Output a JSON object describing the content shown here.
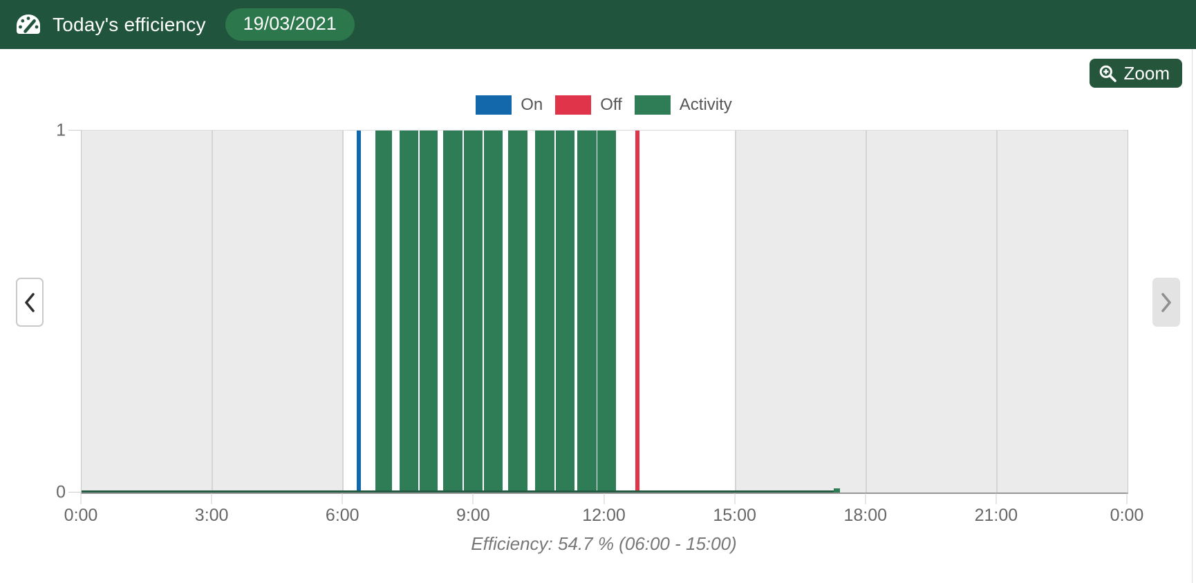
{
  "page": {
    "background": "#ffffff"
  },
  "header": {
    "title": "Today's efficiency",
    "date_badge": "19/03/2021",
    "background": "#21543d",
    "badge_background": "#2d774c"
  },
  "toolbar": {
    "zoom_label": "Zoom",
    "button_background": "#25563c"
  },
  "legend": {
    "position": "top-center",
    "items": [
      {
        "label": "On",
        "color": "#1368ab"
      },
      {
        "label": "Off",
        "color": "#df3449"
      },
      {
        "label": "Activity",
        "color": "#2e7d57"
      }
    ]
  },
  "chart_data": {
    "type": "bar",
    "title": "",
    "x_axis": {
      "unit": "hour-of-day",
      "range_hours": [
        0,
        24
      ],
      "tick_hours": [
        0,
        3,
        6,
        9,
        12,
        15,
        18,
        21,
        24
      ],
      "tick_labels": [
        "0:00",
        "3:00",
        "6:00",
        "9:00",
        "12:00",
        "15:00",
        "18:00",
        "21:00",
        "0:00"
      ],
      "grid": true
    },
    "y_axis": {
      "range": [
        0,
        1
      ],
      "ticks": {
        "min": "0",
        "max": "1"
      }
    },
    "off_hours_band_color": "#ebebeb",
    "off_hours_bands_hours": [
      [
        0,
        6
      ],
      [
        15,
        24
      ]
    ],
    "series": [
      {
        "name": "On",
        "style": "vertical-line",
        "color": "#1368ab",
        "hour": 6.36
      },
      {
        "name": "Off",
        "style": "vertical-line",
        "color": "#df3449",
        "hour": 12.75
      },
      {
        "name": "Activity",
        "style": "bars",
        "color": "#2e7d57",
        "value": 1,
        "intervals_hours": [
          [
            6.74,
            7.12
          ],
          [
            7.3,
            7.73
          ],
          [
            7.76,
            8.17
          ],
          [
            8.3,
            8.74
          ],
          [
            8.77,
            9.2
          ],
          [
            9.23,
            9.66
          ],
          [
            9.79,
            10.23
          ],
          [
            10.41,
            10.85
          ],
          [
            10.88,
            11.31
          ],
          [
            11.37,
            11.82
          ],
          [
            11.84,
            12.26
          ]
        ]
      }
    ],
    "zero_baseline": {
      "color": "#235c43",
      "from_hour": 0,
      "to_hour": 17.4,
      "end_bump_hours": [
        17.26,
        17.4
      ]
    },
    "caption": "Efficiency: 54.7 % (06:00 - 15:00)",
    "efficiency_percent": 54.7,
    "efficiency_window": "06:00 - 15:00",
    "legend_position": "top-center"
  },
  "icons": {
    "header": "gauge-icon",
    "zoom_button": "magnifier-plus-icon",
    "prev": "chevron-left-icon",
    "next": "chevron-right-icon"
  }
}
